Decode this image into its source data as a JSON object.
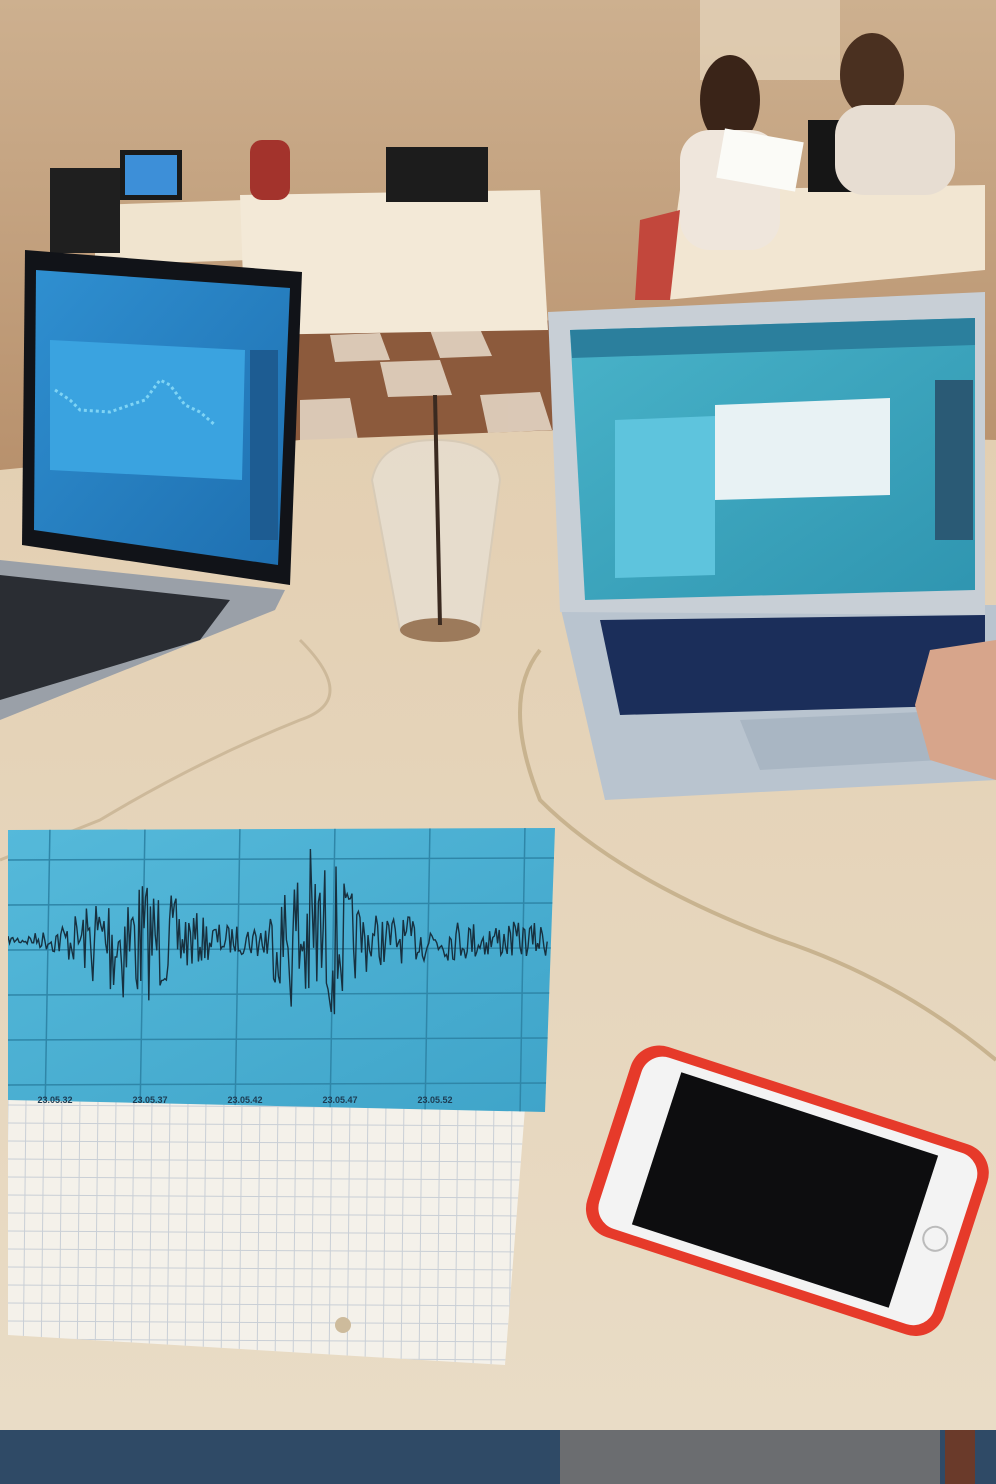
{
  "seismogram": {
    "time_labels": [
      "23.05.32",
      "23.05.37",
      "23.05.42",
      "23.05.47",
      "23.05.52"
    ]
  }
}
